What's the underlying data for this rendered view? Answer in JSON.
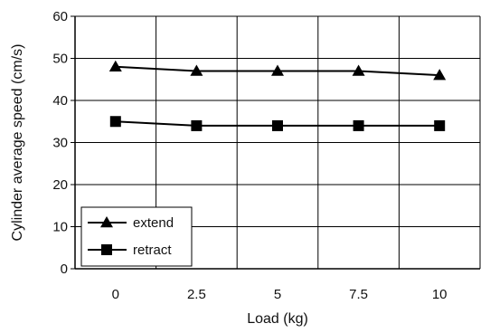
{
  "chart_data": {
    "type": "line",
    "xlabel": "Load (kg)",
    "ylabel": "Cylinder average speed (cm/s)",
    "categories": [
      "0",
      "2.5",
      "5",
      "7.5",
      "10"
    ],
    "x": [
      0,
      2.5,
      5,
      7.5,
      10
    ],
    "ylim": [
      0,
      60
    ],
    "yticks": [
      0,
      10,
      20,
      30,
      40,
      50,
      60
    ],
    "yticks_labels": [
      "0",
      "10",
      "20",
      "30",
      "40",
      "50",
      "60"
    ],
    "grid": true,
    "legend_position": "bottom-left",
    "series": [
      {
        "name": "extend",
        "marker": "triangle",
        "color": "#000000",
        "values": [
          48,
          47,
          47,
          47,
          46
        ]
      },
      {
        "name": "retract",
        "marker": "square",
        "color": "#000000",
        "values": [
          35,
          34,
          34,
          34,
          34
        ]
      }
    ]
  }
}
